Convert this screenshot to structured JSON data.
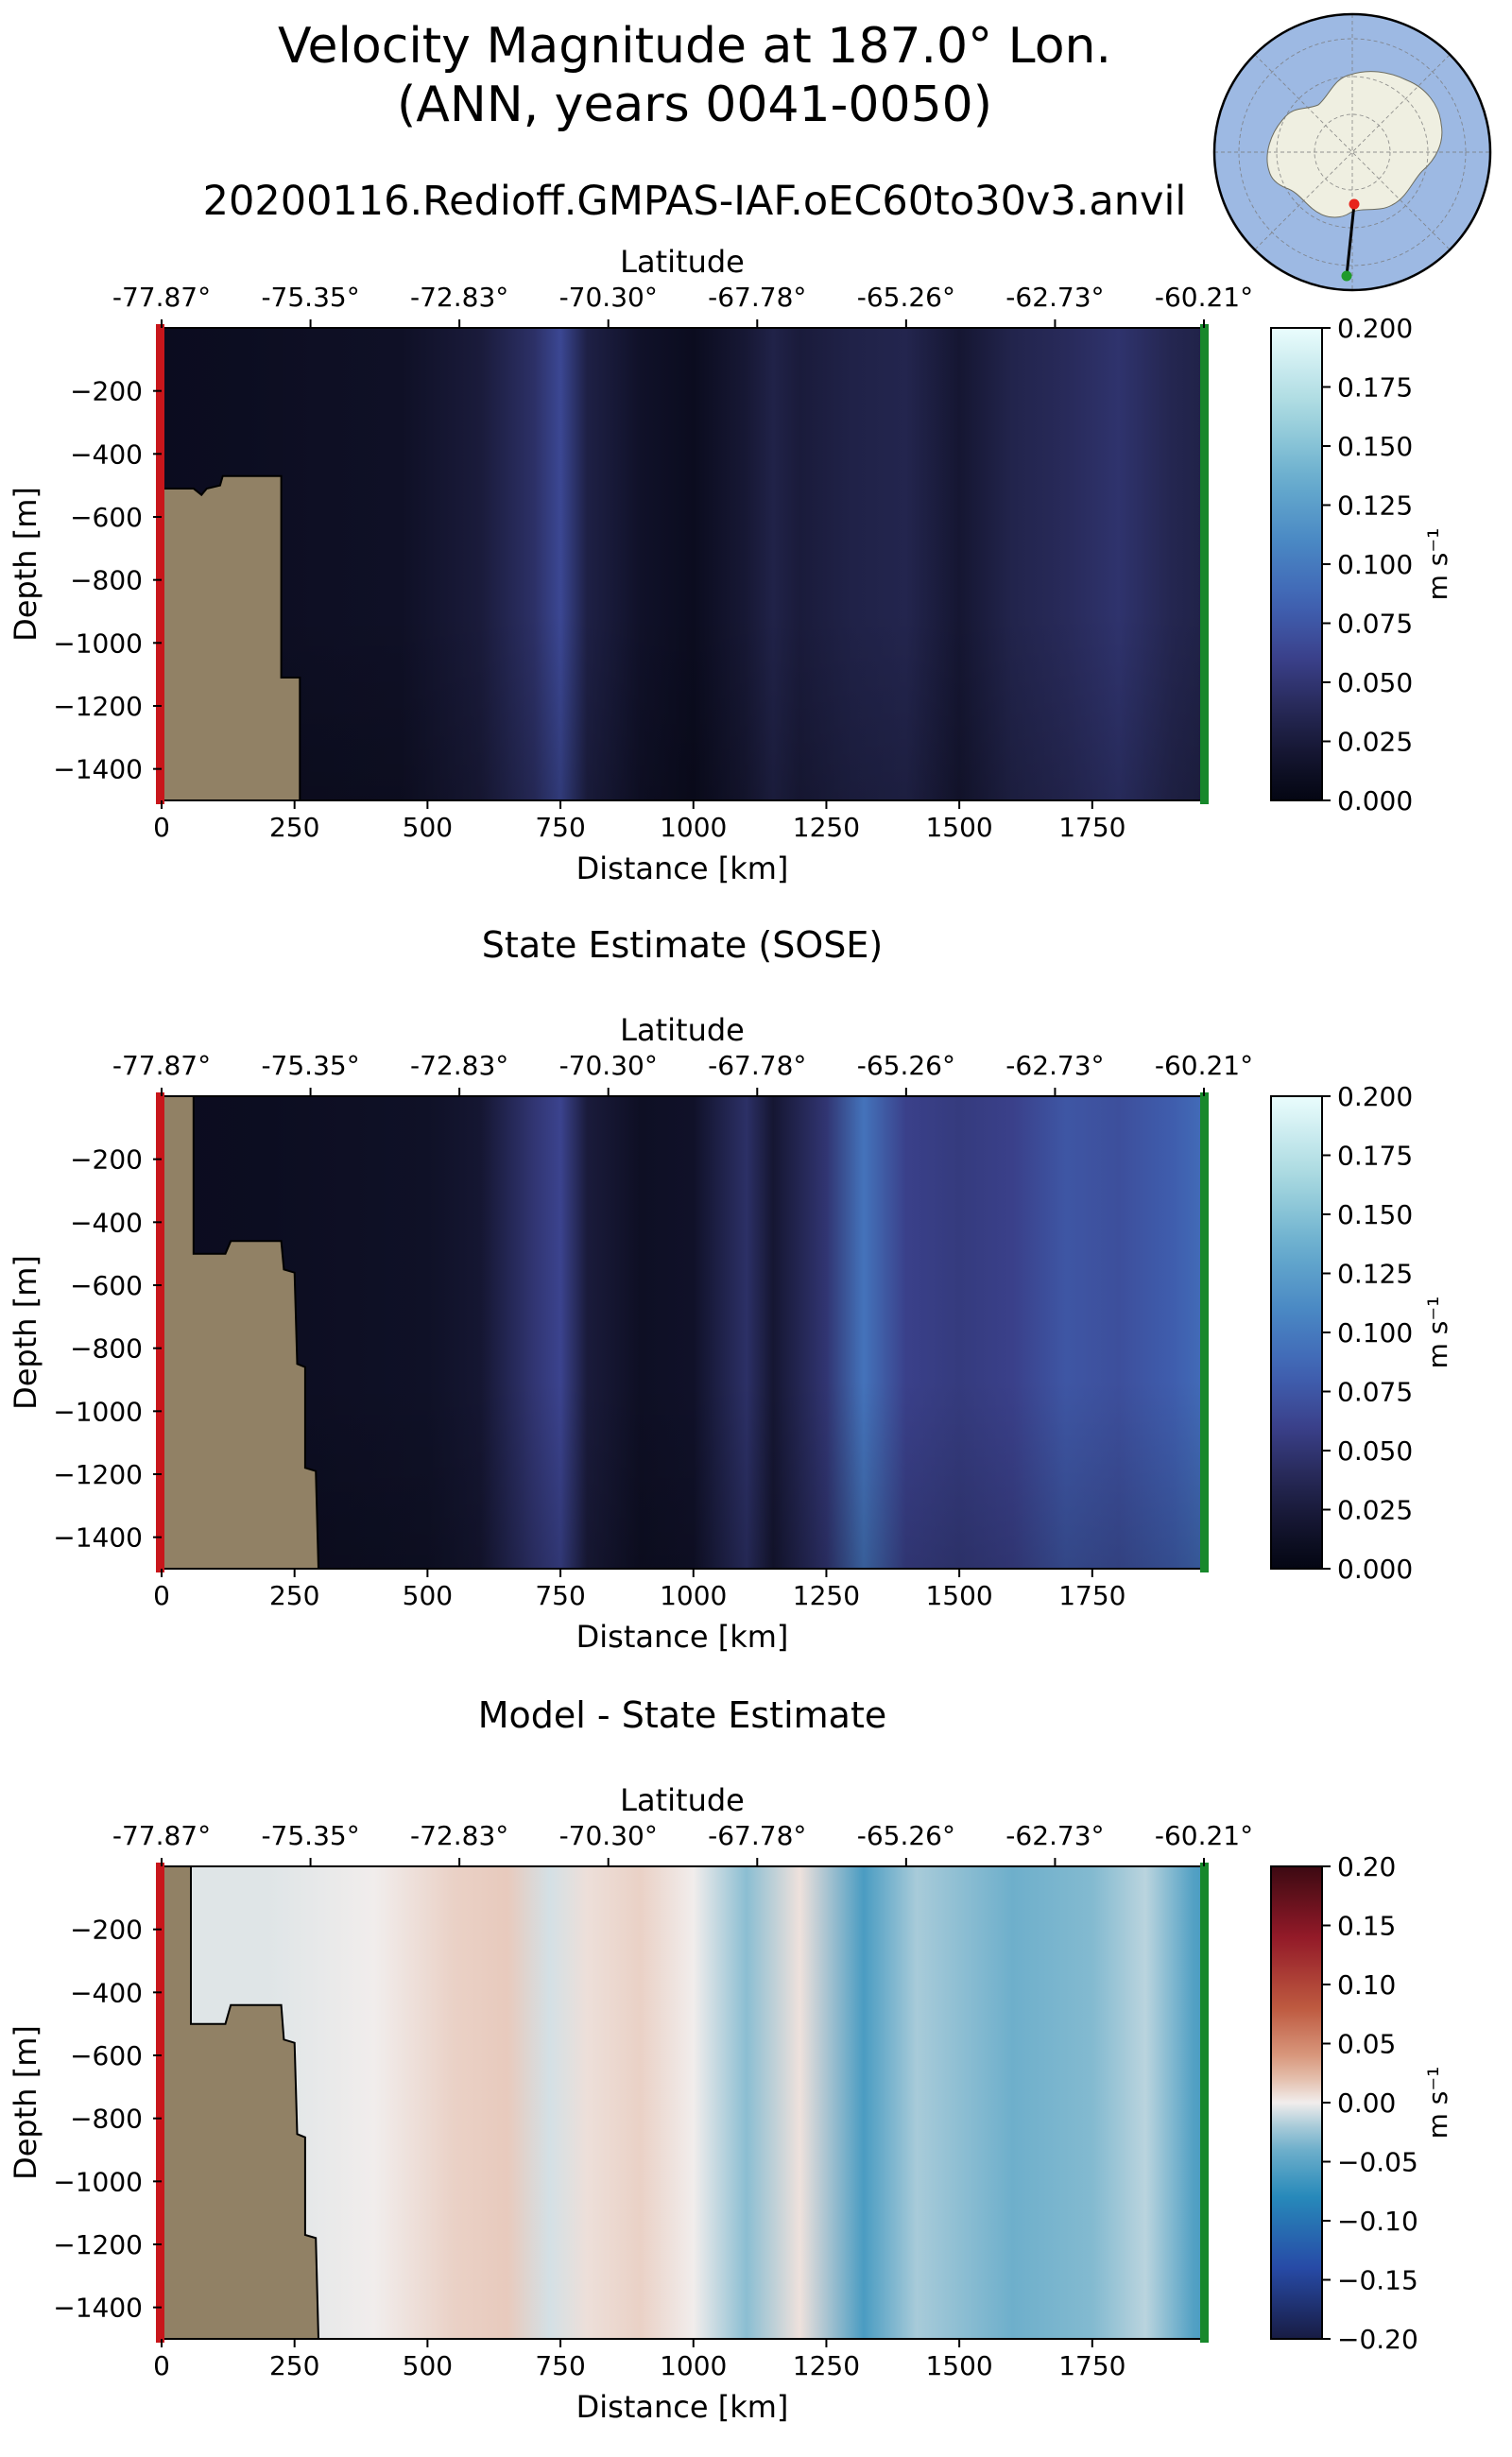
{
  "figure": {
    "title_line1": "Velocity Magnitude at 187.0° Lon.",
    "title_line2": "(ANN, years 0041-0050)",
    "run_name": "20200116.Redioff.GMPAS-IAF.oEC60to30v3.anvil"
  },
  "inset_map": {
    "projection": "south polar stereographic",
    "ocean_color": "#9db9e3",
    "land_color": "#efefe1",
    "transect_start_color": "#e8241c",
    "transect_end_color": "#1f9a2a"
  },
  "colors": {
    "land_mask": "#918165",
    "start_bar": "#c8161b",
    "end_bar": "#17882b"
  },
  "chart_data": [
    {
      "type": "heatmap",
      "title": "",
      "top_axis_label": "Latitude",
      "top_ticks": [
        "-77.87°",
        "-75.35°",
        "-72.83°",
        "-70.30°",
        "-67.78°",
        "-65.26°",
        "-62.73°",
        "-60.21°"
      ],
      "xlabel": "Distance [km]",
      "ylabel": "Depth [m]",
      "xlim": [
        0,
        1960
      ],
      "ylim": [
        -1500,
        0
      ],
      "x_ticks": [
        0,
        250,
        500,
        750,
        1000,
        1250,
        1500,
        1750
      ],
      "y_ticks": [
        -200,
        -400,
        -600,
        -800,
        -1000,
        -1200,
        -1400
      ],
      "colorbar": {
        "label": "m s⁻¹",
        "colormap": "ice",
        "range": [
          0,
          0.2
        ],
        "ticks": [
          "0.200",
          "0.175",
          "0.150",
          "0.125",
          "0.100",
          "0.075",
          "0.050",
          "0.025",
          "0.000"
        ]
      },
      "columns": [
        {
          "x": 0,
          "v": 0.008
        },
        {
          "x": 150,
          "v": 0.01
        },
        {
          "x": 300,
          "v": 0.012
        },
        {
          "x": 450,
          "v": 0.013
        },
        {
          "x": 600,
          "v": 0.025
        },
        {
          "x": 700,
          "v": 0.045
        },
        {
          "x": 750,
          "v": 0.065
        },
        {
          "x": 800,
          "v": 0.03
        },
        {
          "x": 900,
          "v": 0.015
        },
        {
          "x": 1000,
          "v": 0.008
        },
        {
          "x": 1100,
          "v": 0.022
        },
        {
          "x": 1150,
          "v": 0.032
        },
        {
          "x": 1200,
          "v": 0.025
        },
        {
          "x": 1300,
          "v": 0.032
        },
        {
          "x": 1400,
          "v": 0.035
        },
        {
          "x": 1500,
          "v": 0.02
        },
        {
          "x": 1600,
          "v": 0.034
        },
        {
          "x": 1700,
          "v": 0.04
        },
        {
          "x": 1800,
          "v": 0.048
        },
        {
          "x": 1900,
          "v": 0.036
        },
        {
          "x": 1960,
          "v": 0.032
        }
      ],
      "bathymetry": [
        [
          0,
          -1500
        ],
        [
          0,
          -510
        ],
        [
          60,
          -510
        ],
        [
          75,
          -530
        ],
        [
          85,
          -510
        ],
        [
          110,
          -500
        ],
        [
          115,
          -470
        ],
        [
          225,
          -470
        ],
        [
          225,
          -1110
        ],
        [
          260,
          -1110
        ],
        [
          260,
          -1500
        ]
      ]
    },
    {
      "type": "heatmap",
      "title": "State Estimate (SOSE)",
      "top_axis_label": "Latitude",
      "top_ticks": [
        "-77.87°",
        "-75.35°",
        "-72.83°",
        "-70.30°",
        "-67.78°",
        "-65.26°",
        "-62.73°",
        "-60.21°"
      ],
      "xlabel": "Distance [km]",
      "ylabel": "Depth [m]",
      "xlim": [
        0,
        1960
      ],
      "ylim": [
        -1500,
        0
      ],
      "x_ticks": [
        0,
        250,
        500,
        750,
        1000,
        1250,
        1500,
        1750
      ],
      "y_ticks": [
        -200,
        -400,
        -600,
        -800,
        -1000,
        -1200,
        -1400
      ],
      "colorbar": {
        "label": "m s⁻¹",
        "colormap": "ice",
        "range": [
          0,
          0.2
        ],
        "ticks": [
          "0.200",
          "0.175",
          "0.150",
          "0.125",
          "0.100",
          "0.075",
          "0.050",
          "0.025",
          "0.000"
        ]
      },
      "columns": [
        {
          "x": 0,
          "v": 0.008
        },
        {
          "x": 200,
          "v": 0.01
        },
        {
          "x": 350,
          "v": 0.012
        },
        {
          "x": 500,
          "v": 0.014
        },
        {
          "x": 600,
          "v": 0.02
        },
        {
          "x": 700,
          "v": 0.05
        },
        {
          "x": 750,
          "v": 0.062
        },
        {
          "x": 800,
          "v": 0.025
        },
        {
          "x": 900,
          "v": 0.012
        },
        {
          "x": 1000,
          "v": 0.015
        },
        {
          "x": 1100,
          "v": 0.045
        },
        {
          "x": 1150,
          "v": 0.02
        },
        {
          "x": 1250,
          "v": 0.05
        },
        {
          "x": 1320,
          "v": 0.095
        },
        {
          "x": 1400,
          "v": 0.06
        },
        {
          "x": 1500,
          "v": 0.055
        },
        {
          "x": 1600,
          "v": 0.06
        },
        {
          "x": 1700,
          "v": 0.075
        },
        {
          "x": 1800,
          "v": 0.07
        },
        {
          "x": 1900,
          "v": 0.08
        },
        {
          "x": 1960,
          "v": 0.09
        }
      ],
      "bathymetry": [
        [
          0,
          -1500
        ],
        [
          0,
          0
        ],
        [
          60,
          0
        ],
        [
          60,
          -500
        ],
        [
          120,
          -500
        ],
        [
          130,
          -460
        ],
        [
          225,
          -460
        ],
        [
          230,
          -550
        ],
        [
          250,
          -560
        ],
        [
          255,
          -850
        ],
        [
          270,
          -860
        ],
        [
          270,
          -1180
        ],
        [
          290,
          -1190
        ],
        [
          295,
          -1500
        ]
      ]
    },
    {
      "type": "heatmap",
      "title": "Model - State Estimate",
      "top_axis_label": "Latitude",
      "top_ticks": [
        "-77.87°",
        "-75.35°",
        "-72.83°",
        "-70.30°",
        "-67.78°",
        "-65.26°",
        "-62.73°",
        "-60.21°"
      ],
      "xlabel": "Distance [km]",
      "ylabel": "Depth [m]",
      "xlim": [
        0,
        1960
      ],
      "ylim": [
        -1500,
        0
      ],
      "x_ticks": [
        0,
        250,
        500,
        750,
        1000,
        1250,
        1500,
        1750
      ],
      "y_ticks": [
        -200,
        -400,
        -600,
        -800,
        -1000,
        -1200,
        -1400
      ],
      "colorbar": {
        "label": "m s⁻¹",
        "colormap": "balance",
        "range": [
          -0.2,
          0.2
        ],
        "ticks": [
          "0.20",
          "0.15",
          "0.10",
          "0.05",
          "0.00",
          "−0.05",
          "−0.10",
          "−0.15",
          "−0.20"
        ]
      },
      "columns": [
        {
          "x": 0,
          "v": -0.005
        },
        {
          "x": 200,
          "v": -0.005
        },
        {
          "x": 400,
          "v": 0.0
        },
        {
          "x": 550,
          "v": 0.012
        },
        {
          "x": 650,
          "v": 0.015
        },
        {
          "x": 730,
          "v": -0.008
        },
        {
          "x": 800,
          "v": 0.006
        },
        {
          "x": 900,
          "v": 0.012
        },
        {
          "x": 1000,
          "v": 0.0
        },
        {
          "x": 1100,
          "v": -0.028
        },
        {
          "x": 1200,
          "v": 0.005
        },
        {
          "x": 1320,
          "v": -0.06
        },
        {
          "x": 1420,
          "v": -0.02
        },
        {
          "x": 1600,
          "v": -0.04
        },
        {
          "x": 1750,
          "v": -0.03
        },
        {
          "x": 1850,
          "v": -0.015
        },
        {
          "x": 1940,
          "v": -0.055
        },
        {
          "x": 1960,
          "v": -0.06
        }
      ],
      "bathymetry": [
        [
          0,
          -1500
        ],
        [
          0,
          0
        ],
        [
          55,
          0
        ],
        [
          55,
          -500
        ],
        [
          120,
          -500
        ],
        [
          130,
          -440
        ],
        [
          225,
          -440
        ],
        [
          230,
          -550
        ],
        [
          250,
          -560
        ],
        [
          255,
          -850
        ],
        [
          270,
          -860
        ],
        [
          270,
          -1170
        ],
        [
          290,
          -1180
        ],
        [
          295,
          -1500
        ]
      ]
    }
  ]
}
